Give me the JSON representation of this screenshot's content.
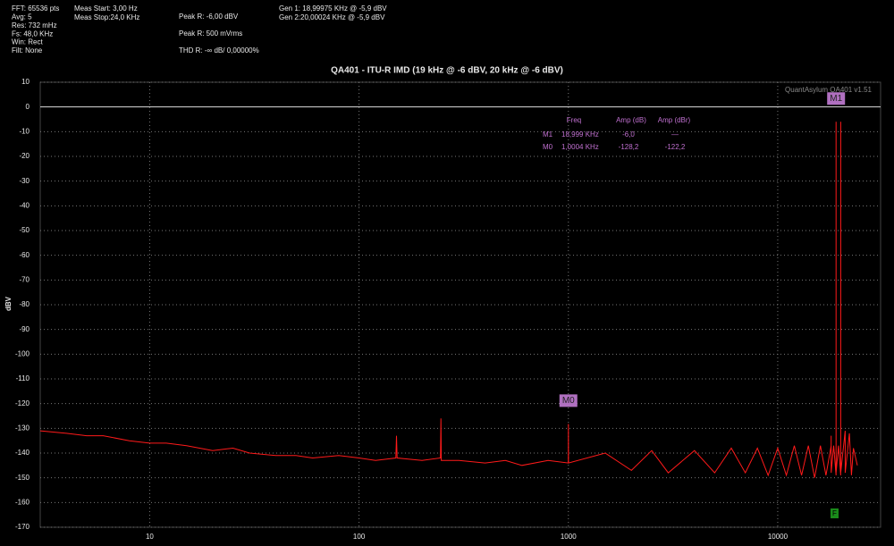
{
  "info": {
    "status": [
      "FFT: 65536 pts",
      "Avg: 5",
      "Res: 732 mHz",
      "Fs: 48,0 KHz",
      "Win: Rect",
      "Filt: None"
    ],
    "meas": [
      "Meas Start: 3,00 Hz",
      "Meas Stop:24,0 KHz"
    ],
    "peak": [
      "Peak R: -6,00 dBV",
      "Peak R: 500 mVrms",
      "THD R: -∞ dB/ 0,00000%"
    ],
    "gen": [
      "Gen 1: 18,99975 KHz @ -5,9  dBV",
      "Gen 2:20,00024 KHz @ -5,9  dBV"
    ]
  },
  "chart_data": {
    "type": "line",
    "title": "QA401 - ITU-R IMD (19 kHz @ -6 dBV, 20 kHz @ -6 dBV)",
    "watermark": "QuantAsylum QA401 v1.51",
    "ylabel": "dBV",
    "xscale": "log",
    "xlim": [
      3,
      31000
    ],
    "xticks": [
      10,
      100,
      1000,
      10000
    ],
    "ylim": [
      -170,
      10
    ],
    "yticks": [
      10,
      0,
      -10,
      -20,
      -30,
      -40,
      -50,
      -60,
      -70,
      -80,
      -90,
      -100,
      -110,
      -120,
      -130,
      -140,
      -150,
      -160,
      -170
    ],
    "grid": true,
    "series": [
      {
        "color": "#ff1a1a",
        "x": [
          3,
          4,
          5,
          6,
          8,
          10,
          12,
          15,
          20,
          25,
          30,
          40,
          50,
          60,
          80,
          100,
          120,
          150,
          151,
          152,
          200,
          245,
          246,
          247,
          300,
          400,
          500,
          600,
          800,
          999,
          1000,
          1001,
          1500,
          2000,
          2500,
          3000,
          4000,
          5000,
          6000,
          7000,
          8000,
          9000,
          10000,
          11000,
          12000,
          13000,
          14000,
          15000,
          16000,
          17000,
          17999,
          18000,
          18001,
          18500,
          18998,
          18999,
          19000,
          19500,
          19999,
          20000,
          20001,
          21000,
          21001,
          22000,
          22500,
          23000,
          24000
        ],
        "values": [
          -131,
          -132,
          -133,
          -133,
          -135,
          -136,
          -136,
          -137,
          -139,
          -138,
          -140,
          -141,
          -141,
          -142,
          -141,
          -142,
          -143,
          -142,
          -133,
          -142,
          -143,
          -142,
          -126,
          -143,
          -143,
          -144,
          -143,
          -145,
          -143,
          -144,
          -128.2,
          -144,
          -140,
          -147,
          -139,
          -148,
          -139,
          -148,
          -138,
          -148,
          -138,
          -149,
          -138,
          -149,
          -137,
          -149,
          -137,
          -150,
          -137,
          -149,
          -137,
          -133,
          -148,
          -137,
          -149,
          -6,
          -148,
          -137,
          -149,
          -6,
          -148,
          -131,
          -148,
          -132,
          -149,
          -138,
          -145
        ]
      }
    ],
    "markers": [
      {
        "label": "M1",
        "x": 18999,
        "value": -6
      },
      {
        "label": "M0",
        "x": 1000,
        "value": -128.2
      }
    ],
    "marker_table": {
      "header": [
        "Freq",
        "Amp (dB)",
        "Amp (dBr)"
      ],
      "rows": [
        [
          "M1",
          "18,999 KHz",
          "-6,0",
          "—"
        ],
        [
          "M0",
          "1,0004 KHz",
          "-128,2",
          "-122,2"
        ]
      ]
    },
    "flag": "F"
  }
}
